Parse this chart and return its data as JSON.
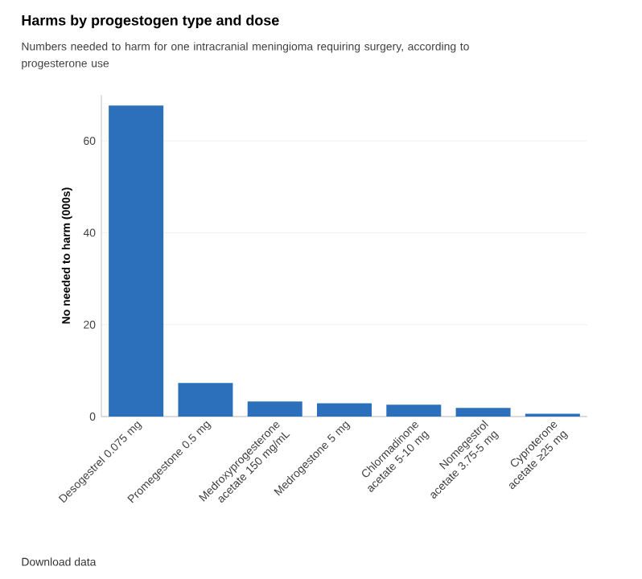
{
  "chart_data": {
    "type": "bar",
    "title": "Harms by progestogen type and dose",
    "subtitle": "Numbers needed to harm for one intracranial meningioma requiring surgery, according to progesterone use",
    "ylabel": "No needed to harm (000s)",
    "categories": [
      "Desogestrel 0.075 mg",
      "Promegestone 0.5 mg",
      "Medroxyprogesterone acetate 150 mg/mL",
      "Medrogestone 5 mg",
      "Chlormadinone acetate 5-10 mg",
      "Nomegestrol acetate 3.75-5 mg",
      "Cyproterone acetate ≥25 mg"
    ],
    "values": [
      67.7,
      7.3,
      3.3,
      2.9,
      2.6,
      1.9,
      0.6
    ],
    "color": "#2c6fbb",
    "ylim": [
      0,
      70
    ],
    "yticks": [
      0,
      20,
      40,
      60
    ],
    "grid": "y",
    "annotations": [
      "Download data"
    ]
  }
}
